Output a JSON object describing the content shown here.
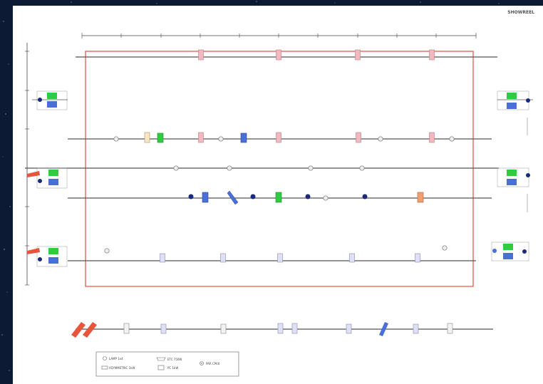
{
  "header": {
    "corner_label": "SHOWREEL"
  },
  "legend": {
    "items": [
      {
        "symbol": "circle-icon",
        "label": "LAMP 1x4"
      },
      {
        "symbol": "wide-rect-icon",
        "label": "ASYMMETRIC 1kW"
      },
      {
        "symbol": "trapezoid-icon",
        "label": "ETC 750W"
      },
      {
        "symbol": "square-icon",
        "label": "PC 1kW"
      },
      {
        "symbol": "circle-dot-icon",
        "label": "PAR CP60"
      }
    ]
  },
  "colors": {
    "stage_outline": "#e84c3d",
    "green_fixture": "#2ecc40",
    "blue_fixture": "#4a6fd6",
    "pink_fixture": "#f2b8bf",
    "lavender_fixture": "#c9c9ee",
    "orange_fixture": "#f0a070",
    "navy_fixture": "#1a2a7a"
  }
}
